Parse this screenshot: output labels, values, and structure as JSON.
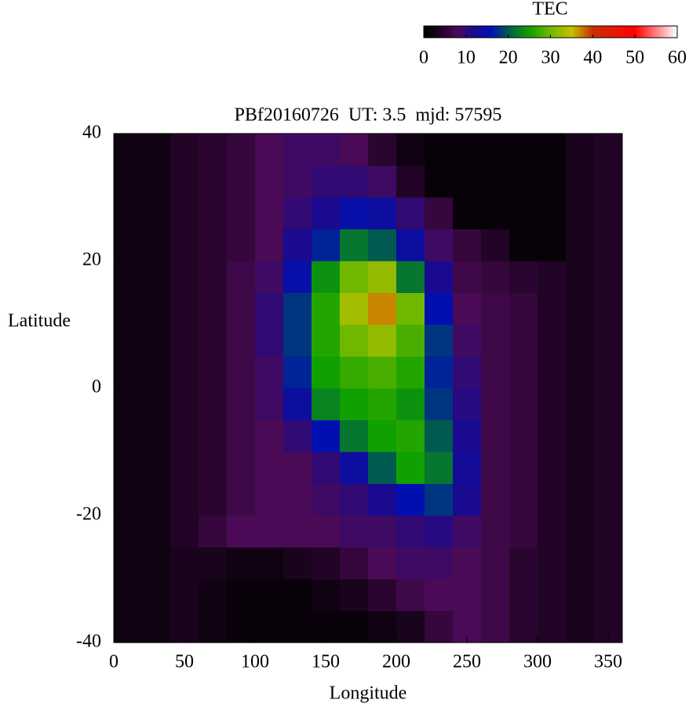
{
  "chart_data": {
    "type": "heatmap",
    "title": "PBf20160726  UT: 3.5  mjd: 57595",
    "xlabel": "Longitude",
    "ylabel": "Latitude",
    "colorbar_label": "TEC",
    "xlim": [
      0,
      360
    ],
    "xticks": [
      0,
      50,
      100,
      150,
      200,
      250,
      300,
      350
    ],
    "ylim": [
      -40,
      40
    ],
    "yticks": [
      -40,
      -20,
      0,
      20,
      40
    ],
    "clim": [
      0,
      60
    ],
    "cticks": [
      0,
      10,
      20,
      30,
      40,
      50,
      60
    ],
    "colorscale": [
      [
        0,
        "#000000"
      ],
      [
        5,
        "#2a0530"
      ],
      [
        8,
        "#4a0a55"
      ],
      [
        12,
        "#1a0a90"
      ],
      [
        16,
        "#0010b0"
      ],
      [
        20,
        "#005a50"
      ],
      [
        25,
        "#10a000"
      ],
      [
        30,
        "#70b800"
      ],
      [
        35,
        "#c8c000"
      ],
      [
        40,
        "#c83000"
      ],
      [
        50,
        "#ff0000"
      ],
      [
        60,
        "#ffffff"
      ]
    ],
    "x": [
      10,
      30,
      50,
      70,
      90,
      110,
      130,
      150,
      170,
      190,
      210,
      230,
      250,
      270,
      290,
      310,
      330,
      350
    ],
    "y": [
      -37.5,
      -32.5,
      -27.5,
      -22.5,
      -17.5,
      -12.5,
      -7.5,
      -2.5,
      2.5,
      7.5,
      12.5,
      17.5,
      22.5,
      27.5,
      32.5,
      37.5
    ],
    "z": [
      [
        2,
        2,
        3,
        2,
        1,
        1,
        1,
        1,
        1,
        2,
        3,
        6,
        8,
        7,
        5,
        4,
        3,
        4
      ],
      [
        2,
        2,
        3,
        2,
        1,
        1,
        1,
        2,
        3,
        5,
        7,
        8,
        8,
        7,
        5,
        4,
        3,
        4
      ],
      [
        2,
        2,
        3,
        3,
        2,
        2,
        3,
        4,
        6,
        8,
        9,
        9,
        8,
        7,
        5,
        4,
        3,
        4
      ],
      [
        2,
        2,
        4,
        6,
        8,
        8,
        8,
        8,
        9,
        9,
        10,
        11,
        9,
        7,
        6,
        4,
        3,
        4
      ],
      [
        2,
        2,
        4,
        5,
        7,
        8,
        8,
        9,
        10,
        12,
        16,
        18,
        12,
        7,
        6,
        4,
        3,
        4
      ],
      [
        2,
        2,
        4,
        5,
        7,
        8,
        8,
        10,
        14,
        20,
        25,
        22,
        13,
        7,
        6,
        4,
        3,
        4
      ],
      [
        2,
        2,
        4,
        5,
        7,
        8,
        10,
        16,
        22,
        25,
        26,
        20,
        12,
        7,
        6,
        4,
        3,
        4
      ],
      [
        2,
        2,
        4,
        5,
        7,
        9,
        14,
        23,
        25,
        26,
        24,
        18,
        11,
        7,
        6,
        4,
        3,
        4
      ],
      [
        2,
        2,
        4,
        5,
        7,
        9,
        17,
        25,
        27,
        28,
        26,
        17,
        10,
        7,
        6,
        4,
        3,
        4
      ],
      [
        2,
        2,
        4,
        5,
        7,
        10,
        18,
        26,
        30,
        32,
        28,
        18,
        9,
        7,
        6,
        4,
        3,
        4
      ],
      [
        2,
        2,
        4,
        5,
        7,
        10,
        18,
        26,
        33,
        37,
        30,
        16,
        8,
        7,
        6,
        4,
        3,
        4
      ],
      [
        2,
        2,
        4,
        5,
        7,
        9,
        15,
        24,
        30,
        32,
        22,
        12,
        7,
        6,
        5,
        4,
        3,
        4
      ],
      [
        2,
        2,
        4,
        5,
        6,
        8,
        12,
        17,
        22,
        20,
        14,
        9,
        6,
        4,
        1,
        1,
        3,
        4
      ],
      [
        2,
        2,
        4,
        5,
        6,
        8,
        10,
        12,
        15,
        14,
        10,
        6,
        1,
        1,
        1,
        1,
        3,
        4
      ],
      [
        2,
        2,
        4,
        5,
        6,
        8,
        9,
        10,
        10,
        9,
        4,
        1,
        1,
        1,
        1,
        1,
        3,
        4
      ],
      [
        2,
        2,
        4,
        5,
        6,
        8,
        9,
        9,
        8,
        5,
        2,
        1,
        1,
        1,
        1,
        1,
        3,
        4
      ]
    ]
  }
}
